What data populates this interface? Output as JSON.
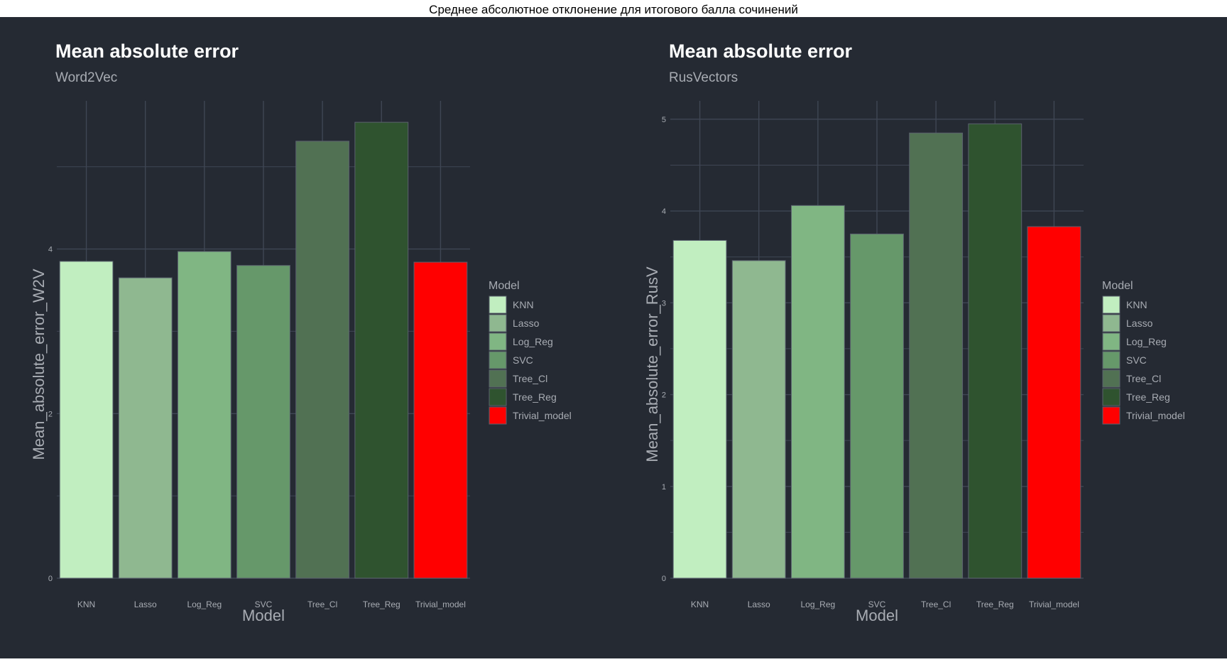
{
  "page": {
    "title": "Среднее абсолютное отклонение для итогового балла сочинений"
  },
  "colors": {
    "background": "#252a33",
    "grid": "#3f4654",
    "text_primary": "#ffffff",
    "text_secondary": "#a8acb3",
    "model_colors": {
      "KNN": "#c1eec0",
      "Lasso": "#8fb890",
      "Log_Reg": "#80b683",
      "SVC": "#66986a",
      "Tree_Cl": "#517153",
      "Tree_Reg": "#2f532f",
      "Trivial_model": "#ff0000"
    }
  },
  "chart_data": [
    {
      "type": "bar",
      "title": "Mean absolute error",
      "subtitle": "Word2Vec",
      "xlabel": "Model",
      "ylabel": "Mean_absolute_error_W2V",
      "categories": [
        "KNN",
        "Lasso",
        "Log_Reg",
        "SVC",
        "Tree_Cl",
        "Tree_Reg",
        "Trivial_model"
      ],
      "values": [
        3.85,
        3.65,
        3.97,
        3.8,
        5.31,
        5.54,
        3.84
      ],
      "ylim": [
        0,
        5.8
      ],
      "yticks": [
        0,
        2,
        4
      ],
      "grid": true,
      "legend": {
        "title": "Model",
        "entries": [
          "KNN",
          "Lasso",
          "Log_Reg",
          "SVC",
          "Tree_Cl",
          "Tree_Reg",
          "Trivial_model"
        ],
        "position": "right"
      }
    },
    {
      "type": "bar",
      "title": "Mean absolute error",
      "subtitle": "RusVectors",
      "xlabel": "Model",
      "ylabel": "Mean_absolute_error_RusV",
      "categories": [
        "KNN",
        "Lasso",
        "Log_Reg",
        "SVC",
        "Tree_Cl",
        "Tree_Reg",
        "Trivial_model"
      ],
      "values": [
        3.68,
        3.46,
        4.06,
        3.75,
        4.85,
        4.95,
        3.83
      ],
      "ylim": [
        0,
        5.2
      ],
      "yticks": [
        0,
        1,
        2,
        3,
        4,
        5
      ],
      "grid": true,
      "legend": {
        "title": "Model",
        "entries": [
          "KNN",
          "Lasso",
          "Log_Reg",
          "SVC",
          "Tree_Cl",
          "Tree_Reg",
          "Trivial_model"
        ],
        "position": "right"
      }
    }
  ]
}
